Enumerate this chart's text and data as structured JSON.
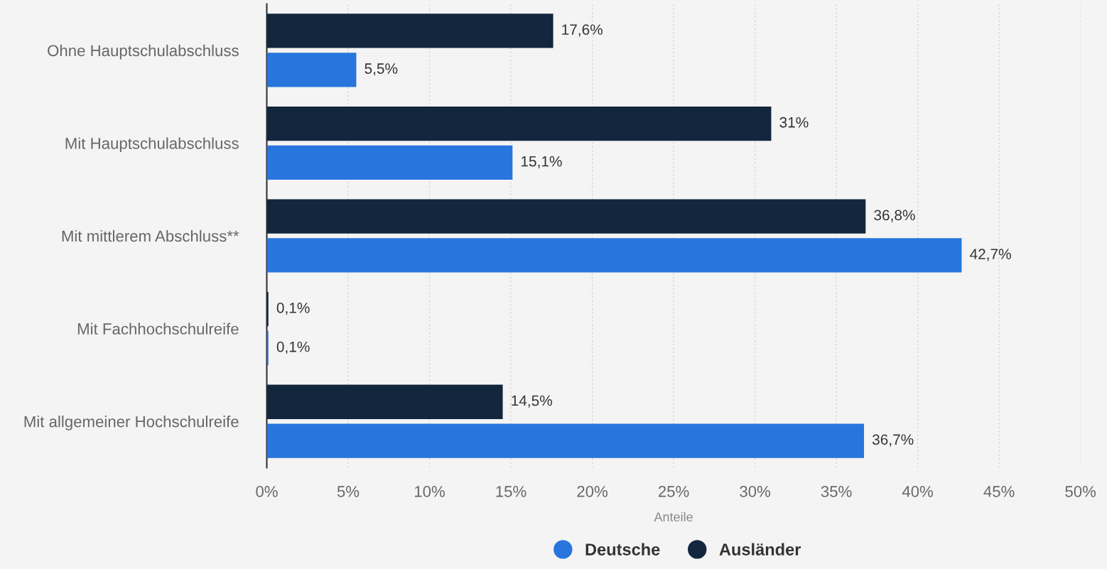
{
  "chart_data": {
    "type": "bar",
    "orientation": "horizontal",
    "xlabel": "Anteile",
    "categories": [
      "Ohne Hauptschulabschluss",
      "Mit Hauptschulabschluss",
      "Mit mittlerem Abschluss**",
      "Mit Fachhochschulreife",
      "Mit allgemeiner Hochschulreife"
    ],
    "series": [
      {
        "name": "Deutsche",
        "color": "#2876dd",
        "values": [
          5.5,
          15.1,
          42.7,
          0.1,
          36.7
        ],
        "value_labels": [
          "5,5%",
          "15,1%",
          "42,7%",
          "0,1%",
          "36,7%"
        ]
      },
      {
        "name": "Ausländer",
        "color": "#12263d",
        "values": [
          17.6,
          31,
          36.8,
          0.1,
          14.5
        ],
        "value_labels": [
          "17,6%",
          "31%",
          "36,8%",
          "0,1%",
          "14,5%"
        ]
      }
    ],
    "xlim": [
      0,
      50
    ],
    "xticks": [
      {
        "value": 0,
        "label": "0%"
      },
      {
        "value": 5,
        "label": "5%"
      },
      {
        "value": 10,
        "label": "10%"
      },
      {
        "value": 15,
        "label": "15%"
      },
      {
        "value": 20,
        "label": "20%"
      },
      {
        "value": 25,
        "label": "25%"
      },
      {
        "value": 30,
        "label": "30%"
      },
      {
        "value": 35,
        "label": "35%"
      },
      {
        "value": 40,
        "label": "40%"
      },
      {
        "value": 45,
        "label": "45%"
      },
      {
        "value": 50,
        "label": "50%"
      }
    ],
    "grid": "x",
    "legend": "bottom"
  }
}
